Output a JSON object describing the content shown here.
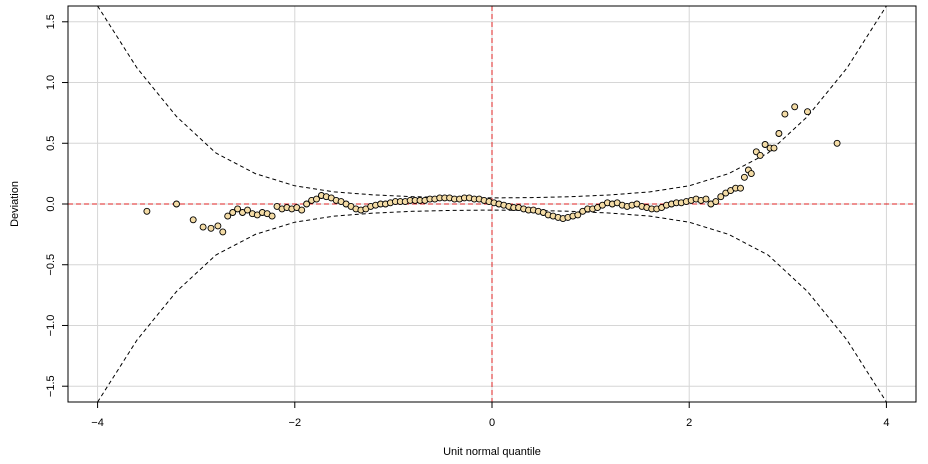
{
  "chart_data": {
    "type": "scatter",
    "title": "",
    "xlabel": "Unit normal quantile",
    "ylabel": "Deviation",
    "xlim": [
      -4.3,
      4.3
    ],
    "ylim": [
      -1.63,
      1.63
    ],
    "xticks": [
      -4,
      -2,
      0,
      2,
      4
    ],
    "xtick_labels": [
      "−4",
      "−2",
      "0",
      "2",
      "4"
    ],
    "yticks": [
      -1.5,
      -1.0,
      -0.5,
      0.0,
      0.5,
      1.0,
      1.5
    ],
    "ytick_labels": [
      "−1.5",
      "−1.0",
      "−0.5",
      "0.0",
      "0.5",
      "1.0",
      "1.5"
    ],
    "grid": true,
    "colors": {
      "point_fill": "#f4dca6",
      "point_edge": "#000000",
      "reference_line": "#dd2222",
      "band": "#000000",
      "grid": "#d6d6d6"
    },
    "reference_lines": {
      "x": 0,
      "y": 0
    },
    "confidence_band": {
      "x": [
        -4.0,
        -3.6,
        -3.2,
        -2.8,
        -2.4,
        -2.0,
        -1.6,
        -1.2,
        -0.8,
        -0.4,
        0.0,
        0.4,
        0.8,
        1.2,
        1.6,
        2.0,
        2.4,
        2.8,
        3.2,
        3.6,
        4.0
      ],
      "upper": [
        1.63,
        1.12,
        0.72,
        0.42,
        0.25,
        0.15,
        0.1,
        0.075,
        0.06,
        0.053,
        0.05,
        0.053,
        0.06,
        0.075,
        0.1,
        0.15,
        0.25,
        0.42,
        0.72,
        1.12,
        1.63
      ],
      "lower": [
        -1.63,
        -1.12,
        -0.72,
        -0.42,
        -0.25,
        -0.15,
        -0.1,
        -0.075,
        -0.06,
        -0.053,
        -0.05,
        -0.053,
        -0.06,
        -0.075,
        -0.1,
        -0.15,
        -0.25,
        -0.42,
        -0.72,
        -1.12,
        -1.63
      ]
    },
    "series": [
      {
        "points": [
          [
            -3.5,
            -0.06
          ],
          [
            -3.2,
            0.0
          ],
          [
            -3.03,
            -0.13
          ],
          [
            -2.93,
            -0.19
          ],
          [
            -2.85,
            -0.2
          ],
          [
            -2.78,
            -0.18
          ],
          [
            -2.73,
            -0.23
          ],
          [
            -2.68,
            -0.1
          ],
          [
            -2.63,
            -0.07
          ],
          [
            -2.58,
            -0.04
          ],
          [
            -2.53,
            -0.07
          ],
          [
            -2.48,
            -0.05
          ],
          [
            -2.43,
            -0.08
          ],
          [
            -2.38,
            -0.09
          ],
          [
            -2.33,
            -0.07
          ],
          [
            -2.28,
            -0.08
          ],
          [
            -2.23,
            -0.1
          ],
          [
            -2.18,
            -0.02
          ],
          [
            -2.13,
            -0.04
          ],
          [
            -2.08,
            -0.03
          ],
          [
            -2.03,
            -0.04
          ],
          [
            -1.98,
            -0.03
          ],
          [
            -1.93,
            -0.05
          ],
          [
            -1.88,
            0.0
          ],
          [
            -1.83,
            0.03
          ],
          [
            -1.78,
            0.04
          ],
          [
            -1.73,
            0.07
          ],
          [
            -1.68,
            0.06
          ],
          [
            -1.63,
            0.05
          ],
          [
            -1.58,
            0.03
          ],
          [
            -1.53,
            0.02
          ],
          [
            -1.48,
            0.0
          ],
          [
            -1.43,
            -0.02
          ],
          [
            -1.38,
            -0.04
          ],
          [
            -1.33,
            -0.05
          ],
          [
            -1.28,
            -0.04
          ],
          [
            -1.23,
            -0.02
          ],
          [
            -1.18,
            -0.01
          ],
          [
            -1.13,
            0.0
          ],
          [
            -1.08,
            0.0
          ],
          [
            -1.03,
            0.01
          ],
          [
            -0.98,
            0.02
          ],
          [
            -0.93,
            0.02
          ],
          [
            -0.88,
            0.02
          ],
          [
            -0.83,
            0.03
          ],
          [
            -0.78,
            0.03
          ],
          [
            -0.73,
            0.03
          ],
          [
            -0.68,
            0.03
          ],
          [
            -0.63,
            0.04
          ],
          [
            -0.58,
            0.04
          ],
          [
            -0.53,
            0.05
          ],
          [
            -0.48,
            0.05
          ],
          [
            -0.43,
            0.05
          ],
          [
            -0.38,
            0.04
          ],
          [
            -0.33,
            0.04
          ],
          [
            -0.28,
            0.05
          ],
          [
            -0.23,
            0.05
          ],
          [
            -0.18,
            0.04
          ],
          [
            -0.13,
            0.04
          ],
          [
            -0.08,
            0.03
          ],
          [
            -0.03,
            0.02
          ],
          [
            0.02,
            0.01
          ],
          [
            0.07,
            0.0
          ],
          [
            0.12,
            -0.01
          ],
          [
            0.17,
            -0.02
          ],
          [
            0.22,
            -0.03
          ],
          [
            0.27,
            -0.03
          ],
          [
            0.32,
            -0.04
          ],
          [
            0.37,
            -0.05
          ],
          [
            0.42,
            -0.05
          ],
          [
            0.47,
            -0.06
          ],
          [
            0.52,
            -0.07
          ],
          [
            0.57,
            -0.09
          ],
          [
            0.62,
            -0.1
          ],
          [
            0.67,
            -0.11
          ],
          [
            0.72,
            -0.12
          ],
          [
            0.77,
            -0.11
          ],
          [
            0.82,
            -0.1
          ],
          [
            0.87,
            -0.09
          ],
          [
            0.92,
            -0.06
          ],
          [
            0.97,
            -0.04
          ],
          [
            1.02,
            -0.04
          ],
          [
            1.07,
            -0.03
          ],
          [
            1.12,
            -0.01
          ],
          [
            1.17,
            0.01
          ],
          [
            1.22,
            0.0
          ],
          [
            1.27,
            0.01
          ],
          [
            1.32,
            -0.01
          ],
          [
            1.37,
            -0.02
          ],
          [
            1.42,
            -0.01
          ],
          [
            1.47,
            0.0
          ],
          [
            1.52,
            -0.02
          ],
          [
            1.57,
            -0.03
          ],
          [
            1.62,
            -0.04
          ],
          [
            1.67,
            -0.04
          ],
          [
            1.72,
            -0.03
          ],
          [
            1.77,
            -0.01
          ],
          [
            1.82,
            0.0
          ],
          [
            1.87,
            0.01
          ],
          [
            1.92,
            0.01
          ],
          [
            1.97,
            0.02
          ],
          [
            2.02,
            0.03
          ],
          [
            2.07,
            0.04
          ],
          [
            2.12,
            0.03
          ],
          [
            2.17,
            0.04
          ],
          [
            2.22,
            0.0
          ],
          [
            2.27,
            0.02
          ],
          [
            2.32,
            0.06
          ],
          [
            2.37,
            0.09
          ],
          [
            2.42,
            0.11
          ],
          [
            2.47,
            0.13
          ],
          [
            2.52,
            0.13
          ],
          [
            2.56,
            0.22
          ],
          [
            2.6,
            0.28
          ],
          [
            2.63,
            0.25
          ],
          [
            2.68,
            0.43
          ],
          [
            2.72,
            0.4
          ],
          [
            2.77,
            0.49
          ],
          [
            2.82,
            0.46
          ],
          [
            2.86,
            0.46
          ],
          [
            2.91,
            0.58
          ],
          [
            2.97,
            0.74
          ],
          [
            3.07,
            0.8
          ],
          [
            3.2,
            0.76
          ],
          [
            3.5,
            0.5
          ]
        ]
      }
    ]
  }
}
